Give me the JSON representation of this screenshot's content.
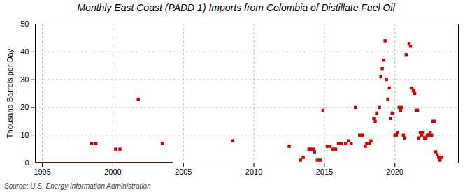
{
  "chart_data": {
    "type": "scatter",
    "title": "Monthly East Coast (PADD 1) Imports from Colombia of Distillate Fuel Oil",
    "ylabel": "Thousand Barrels per Day",
    "source": "Source: U.S. Energy Information Administration",
    "xlim": [
      1994.5,
      2024.5
    ],
    "ylim": [
      0,
      50
    ],
    "xticks": [
      1995,
      2000,
      2005,
      2010,
      2015,
      2020
    ],
    "yticks": [
      0,
      10,
      20,
      30,
      40,
      50
    ],
    "grid": true,
    "series": [
      {
        "type": "line",
        "color": "#8b0000",
        "x": [
          1994.5,
          2004.2
        ],
        "values": [
          0,
          0
        ]
      },
      {
        "type": "scatter",
        "color": "#cc0000",
        "marker": "square",
        "x": [
          1998.5,
          1998.8,
          2000.2,
          2000.5,
          2001.8,
          2003.5,
          2008.5,
          2012.5,
          2013.3,
          2013.5,
          2013.9,
          2014.0,
          2014.2,
          2014.3,
          2014.5,
          2014.7,
          2014.9,
          2015.2,
          2015.4,
          2015.6,
          2015.8,
          2016.0,
          2016.2,
          2016.5,
          2016.7,
          2016.9,
          2017.2,
          2017.5,
          2017.7,
          2017.9,
          2018.0,
          2018.2,
          2018.3,
          2018.5,
          2018.6,
          2018.7,
          2018.9,
          2019.0,
          2019.1,
          2019.2,
          2019.3,
          2019.4,
          2019.5,
          2019.6,
          2019.7,
          2019.8,
          2020.0,
          2020.1,
          2020.2,
          2020.3,
          2020.4,
          2020.5,
          2020.6,
          2020.7,
          2020.8,
          2021.0,
          2021.1,
          2021.2,
          2021.3,
          2021.4,
          2021.5,
          2021.6,
          2021.7,
          2021.8,
          2021.9,
          2022.0,
          2022.1,
          2022.2,
          2022.3,
          2022.4,
          2022.5,
          2022.6,
          2022.7,
          2022.8,
          2022.9,
          2023.0,
          2023.1,
          2023.2,
          2023.3
        ],
        "values": [
          7,
          7,
          5,
          5,
          23,
          7,
          8,
          6,
          1,
          2,
          5,
          5,
          5,
          4,
          1,
          1,
          19,
          6,
          6,
          5,
          5,
          7,
          7,
          7,
          8,
          7,
          20,
          10,
          10,
          6,
          7,
          7,
          8,
          16,
          15,
          18,
          20,
          31,
          34,
          37,
          44,
          30,
          23,
          27,
          16,
          18,
          10,
          10,
          11,
          20,
          19,
          20,
          10,
          9,
          39,
          43,
          42,
          27,
          26,
          25,
          19,
          19,
          9,
          11,
          10,
          11,
          9,
          9,
          10,
          10,
          11,
          10,
          15,
          15,
          4,
          3,
          2,
          1,
          2
        ]
      }
    ]
  }
}
